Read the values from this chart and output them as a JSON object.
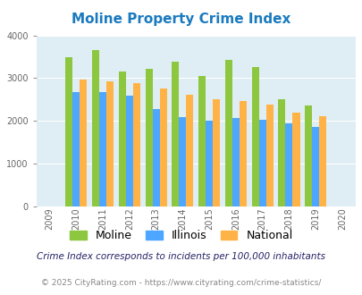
{
  "title": "Moline Property Crime Index",
  "years": [
    2009,
    2010,
    2011,
    2012,
    2013,
    2014,
    2015,
    2016,
    2017,
    2018,
    2019,
    2020
  ],
  "moline": [
    null,
    3500,
    3650,
    3150,
    3220,
    3380,
    3050,
    3420,
    3260,
    2500,
    2370,
    null
  ],
  "illinois": [
    null,
    2680,
    2680,
    2590,
    2280,
    2090,
    2000,
    2070,
    2020,
    1950,
    1870,
    null
  ],
  "national": [
    null,
    2960,
    2920,
    2880,
    2760,
    2620,
    2510,
    2460,
    2390,
    2200,
    2110,
    null
  ],
  "bar_width": 0.27,
  "ylim": [
    0,
    4000
  ],
  "yticks": [
    0,
    1000,
    2000,
    3000,
    4000
  ],
  "color_moline": "#8dc63f",
  "color_illinois": "#4da6ff",
  "color_national": "#ffb347",
  "bg_color": "#deeef4",
  "title_color": "#1a7abf",
  "title_fontsize": 11,
  "legend_fontsize": 9,
  "footnote1": "Crime Index corresponds to incidents per 100,000 inhabitants",
  "footnote2": "© 2025 CityRating.com - https://www.cityrating.com/crime-statistics/",
  "footnote1_color": "#222266",
  "footnote2_color": "#888888"
}
